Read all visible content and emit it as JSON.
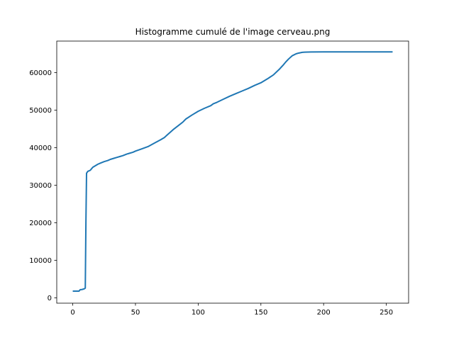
{
  "chart_data": {
    "type": "line",
    "title": "Histogramme cumulé de l'image cerveau.png",
    "xlabel": "",
    "ylabel": "",
    "xlim": [
      -12.75,
      267.75
    ],
    "ylim": [
      -1400,
      68400
    ],
    "xticks": [
      0,
      50,
      100,
      150,
      200,
      250
    ],
    "yticks": [
      0,
      10000,
      20000,
      30000,
      40000,
      50000,
      60000
    ],
    "grid": false,
    "line_color": "#1f77b4",
    "series": [
      {
        "x": [
          0,
          3,
          5,
          6,
          7,
          8,
          9,
          10,
          10.5,
          11,
          12,
          14,
          16,
          18,
          20,
          22,
          25,
          28,
          30,
          33,
          35,
          38,
          40,
          43,
          45,
          48,
          50,
          55,
          60,
          65,
          70,
          73,
          75,
          80,
          85,
          88,
          90,
          95,
          100,
          105,
          110,
          112,
          115,
          120,
          125,
          130,
          135,
          140,
          145,
          150,
          155,
          160,
          165,
          168,
          170,
          172,
          175,
          178,
          180,
          183,
          185,
          190,
          200,
          210,
          220,
          230,
          240,
          250,
          255
        ],
        "y": [
          1800,
          1800,
          1800,
          2200,
          2200,
          2300,
          2400,
          2600,
          20000,
          33200,
          33700,
          34000,
          34800,
          35200,
          35600,
          35900,
          36300,
          36600,
          36900,
          37200,
          37400,
          37700,
          37900,
          38300,
          38500,
          38800,
          39100,
          39700,
          40300,
          41200,
          42100,
          42700,
          43300,
          44800,
          46100,
          46900,
          47600,
          48700,
          49700,
          50500,
          51200,
          51700,
          52100,
          52900,
          53700,
          54400,
          55100,
          55800,
          56600,
          57300,
          58300,
          59400,
          61000,
          62100,
          62900,
          63600,
          64500,
          65000,
          65200,
          65400,
          65450,
          65500,
          65520,
          65530,
          65534,
          65535,
          65535,
          65535,
          65535
        ]
      }
    ]
  }
}
